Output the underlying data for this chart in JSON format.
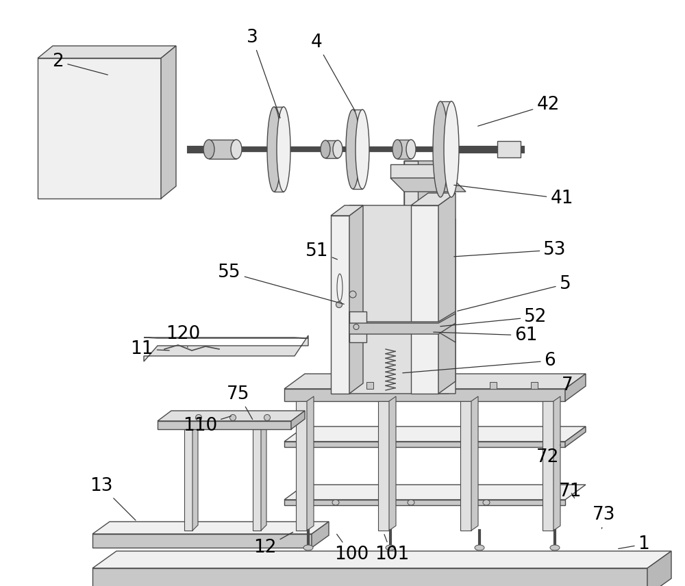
{
  "bg_color": "#ffffff",
  "lc": "#4a4a4a",
  "fc_light": "#f0f0f0",
  "fc_mid": "#e0e0e0",
  "fc_dark": "#c8c8c8",
  "fc_darker": "#b8b8b8",
  "lw": 1.0
}
